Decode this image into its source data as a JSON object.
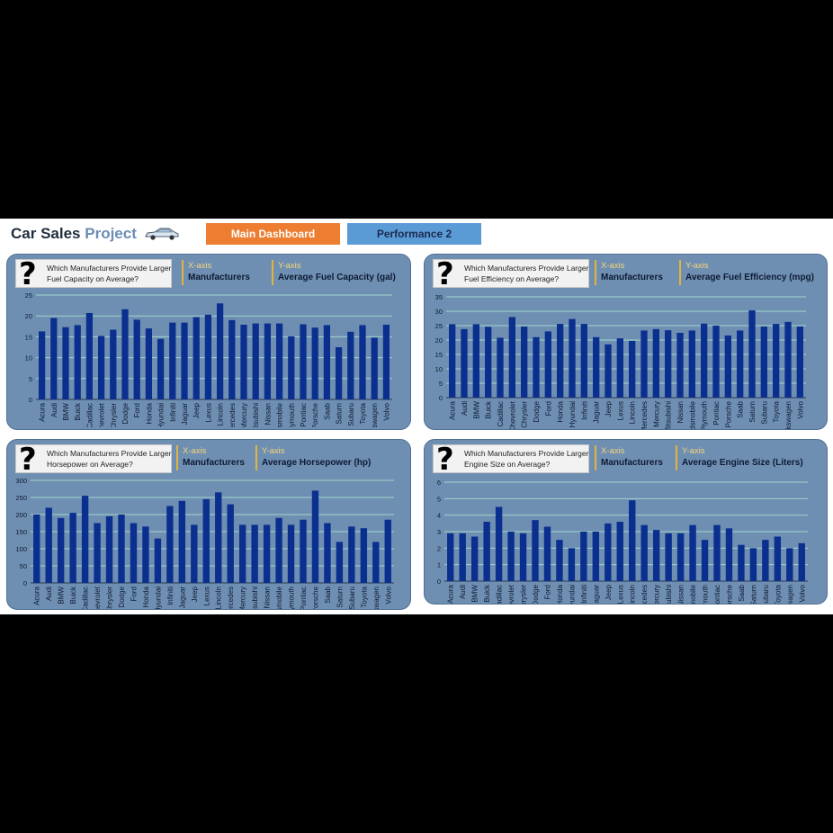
{
  "header": {
    "title_main": "Car Sales",
    "title_accent": "Project",
    "nav": {
      "main_dashboard": "Main Dashboard",
      "performance_2": "Performance 2"
    }
  },
  "colors": {
    "bar": "#0b2f8f",
    "panel": "#6f8fb2",
    "gridline": "#9fd5c9",
    "axis_accent": "#e3b43c",
    "btn_main": "#ed7d31",
    "btn_perf": "#5b9bd5"
  },
  "panels": {
    "fuel_capacity": {
      "question": "Which Manufacturers Provide Larger Fuel Capacity on Average?",
      "x_tag": "X-axis",
      "x_title": "Manufacturers",
      "y_tag": "Y-axis",
      "y_title": "Average Fuel Capacity (gal)"
    },
    "fuel_efficiency": {
      "question": "Which Manufacturers Provide Larger Fuel Efficiency on Average?",
      "x_tag": "X-axis",
      "x_title": "Manufacturers",
      "y_tag": "Y-axis",
      "y_title": "Average Fuel Efficiency (mpg)"
    },
    "horsepower": {
      "question": "Which Manufacturers Provide Larger Horsepower on Average?",
      "x_tag": "X-axis",
      "x_title": "Manufacturers",
      "y_tag": "Y-axis",
      "y_title": "Average Horsepower (hp)"
    },
    "engine_size": {
      "question": "Which Manufacturers Provide Larger Engine Size on Average?",
      "x_tag": "X-axis",
      "x_title": "Manufacturers",
      "y_tag": "Y-axis",
      "y_title": "Average Engine Size (Liters)"
    }
  },
  "chart_data": [
    {
      "id": "fuel_capacity",
      "type": "bar",
      "title": "Which Manufacturers Provide Larger Fuel Capacity on Average?",
      "xlabel": "Manufacturers",
      "ylabel": "Average Fuel Capacity (gal)",
      "ylim": [
        0,
        25
      ],
      "yticks": [
        0,
        5,
        10,
        15,
        20,
        25
      ],
      "categories": [
        "Acura",
        "Audi",
        "BMW",
        "Buick",
        "Cadillac",
        "Chevrolet",
        "Chrysler",
        "Dodge",
        "Ford",
        "Honda",
        "Hyundai",
        "Infiniti",
        "Jaguar",
        "Jeep",
        "Lexus",
        "Lincoln",
        "Mercedes",
        "Mercury",
        "Mitsubishi",
        "Nissan",
        "Oldsmobile",
        "Plymouth",
        "Pontiac",
        "Porsche",
        "Saab",
        "Saturn",
        "Subaru",
        "Toyota",
        "Volkswagen",
        "Volvo"
      ],
      "values": [
        16.3,
        19.5,
        17.3,
        17.8,
        20.7,
        15.2,
        16.7,
        21.6,
        19.1,
        17.0,
        14.5,
        18.4,
        18.4,
        19.7,
        20.3,
        23.0,
        19.0,
        17.9,
        18.2,
        18.2,
        18.2,
        15.1,
        18.0,
        17.2,
        17.8,
        12.5,
        16.2,
        17.8,
        14.8,
        17.9
      ]
    },
    {
      "id": "fuel_efficiency",
      "type": "bar",
      "title": "Which Manufacturers Provide Larger Fuel Efficiency on Average?",
      "xlabel": "Manufacturers",
      "ylabel": "Average Fuel Efficiency (mpg)",
      "ylim": [
        0,
        35
      ],
      "yticks": [
        0,
        5,
        10,
        15,
        20,
        25,
        30,
        35
      ],
      "categories": [
        "Acura",
        "Audi",
        "BMW",
        "Buick",
        "Cadillac",
        "Chevrolet",
        "Chrysler",
        "Dodge",
        "Ford",
        "Honda",
        "Hyundai",
        "Infiniti",
        "Jaguar",
        "Jeep",
        "Lexus",
        "Lincoln",
        "Mercedes",
        "Mercury",
        "Mitsubishi",
        "Nissan",
        "Oldsmobile",
        "Plymouth",
        "Pontiac",
        "Porsche",
        "Saab",
        "Saturn",
        "Subaru",
        "Toyota",
        "Volkswagen",
        "Volvo"
      ],
      "values": [
        25.5,
        23.8,
        25.5,
        24.6,
        20.8,
        28.0,
        24.7,
        21.0,
        23.0,
        25.6,
        27.3,
        25.6,
        21.0,
        18.5,
        20.6,
        19.7,
        23.3,
        23.8,
        23.4,
        22.5,
        23.3,
        25.7,
        25.0,
        21.6,
        23.3,
        30.3,
        24.7,
        25.6,
        26.3,
        24.7
      ]
    },
    {
      "id": "horsepower",
      "type": "bar",
      "title": "Which Manufacturers Provide Larger Horsepower on Average?",
      "xlabel": "Manufacturers",
      "ylabel": "Average Horsepower (hp)",
      "ylim": [
        0,
        300
      ],
      "yticks": [
        0,
        50,
        100,
        150,
        200,
        250,
        300
      ],
      "categories": [
        "Acura",
        "Audi",
        "BMW",
        "Buick",
        "Cadillac",
        "Chevrolet",
        "Chrysler",
        "Dodge",
        "Ford",
        "Honda",
        "Hyundai",
        "Infiniti",
        "Jaguar",
        "Jeep",
        "Lexus",
        "Lincoln",
        "Mercedes",
        "Mercury",
        "Mitsubishi",
        "Nissan",
        "Oldsmobile",
        "Plymouth",
        "Pontiac",
        "Porsche",
        "Saab",
        "Saturn",
        "Subaru",
        "Toyota",
        "Volkswagen",
        "Volvo"
      ],
      "values": [
        200,
        220,
        190,
        205,
        255,
        175,
        195,
        200,
        175,
        165,
        130,
        225,
        240,
        170,
        245,
        265,
        230,
        170,
        170,
        170,
        190,
        170,
        185,
        270,
        175,
        120,
        165,
        160,
        120,
        185
      ]
    },
    {
      "id": "engine_size",
      "type": "bar",
      "title": "Which Manufacturers Provide Larger Engine Size on Average?",
      "xlabel": "Manufacturers",
      "ylabel": "Average Engine Size (Liters)",
      "ylim": [
        0,
        6
      ],
      "yticks": [
        0,
        1,
        2,
        3,
        4,
        5,
        6
      ],
      "categories": [
        "Acura",
        "Audi",
        "BMW",
        "Buick",
        "Cadillac",
        "Chevrolet",
        "Chrysler",
        "Dodge",
        "Ford",
        "Honda",
        "Hyundai",
        "Infiniti",
        "Jaguar",
        "Jeep",
        "Lexus",
        "Lincoln",
        "Mercedes",
        "Mercury",
        "Mitsubishi",
        "Nissan",
        "Oldsmobile",
        "Plymouth",
        "Pontiac",
        "Porsche",
        "Saab",
        "Saturn",
        "Subaru",
        "Toyota",
        "Volkswagen",
        "Volvo"
      ],
      "values": [
        2.9,
        2.9,
        2.7,
        3.6,
        4.5,
        3.0,
        2.9,
        3.7,
        3.3,
        2.5,
        2.0,
        3.0,
        3.0,
        3.5,
        3.6,
        4.9,
        3.4,
        3.1,
        2.9,
        2.9,
        3.4,
        2.5,
        3.4,
        3.2,
        2.2,
        2.0,
        2.5,
        2.7,
        2.0,
        2.3
      ]
    }
  ]
}
